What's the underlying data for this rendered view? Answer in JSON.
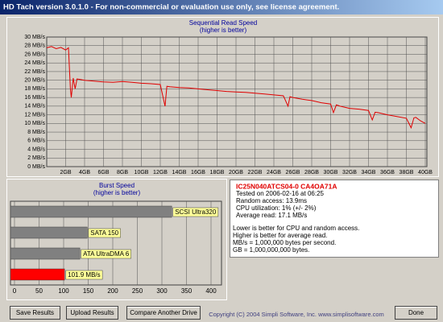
{
  "window": {
    "title": "HD Tach version 3.0.1.0  - For non-commercial or evaluation use only, see license agreement."
  },
  "chart_data": [
    {
      "type": "line",
      "title": "Sequential Read Speed",
      "subtitle": "(higher is better)",
      "x": [
        0,
        0.5,
        1,
        1.5,
        2,
        2.3,
        2.5,
        2.6,
        2.8,
        3,
        3.2,
        3.5,
        4,
        5,
        6,
        7,
        8,
        9,
        10,
        11,
        12,
        12.5,
        12.7,
        13,
        14,
        15,
        16,
        17,
        18,
        19,
        20,
        21,
        22,
        23,
        24,
        25,
        25.5,
        25.7,
        26,
        27,
        28,
        29,
        30,
        30.3,
        30.6,
        31,
        32,
        33,
        34,
        34.4,
        34.7,
        35,
        36,
        37,
        38,
        38.5,
        38.8,
        39,
        39.5,
        40
      ],
      "values": [
        27.5,
        27.8,
        27.3,
        27.6,
        27,
        27.5,
        18,
        16,
        20.5,
        18,
        20.3,
        20.2,
        20,
        19.8,
        19.6,
        19.5,
        19.7,
        19.5,
        19.3,
        19.2,
        19,
        14,
        18.6,
        18.5,
        18.3,
        18.2,
        18,
        17.8,
        17.6,
        17.4,
        17.3,
        17.2,
        17,
        16.8,
        16.6,
        16.4,
        14,
        16.2,
        16,
        15.6,
        15.3,
        14.8,
        14.5,
        12.5,
        14.3,
        14,
        13.5,
        13.3,
        13,
        10.8,
        12.6,
        12.5,
        12,
        11.6,
        11.2,
        9,
        11.3,
        11.4,
        10.6,
        10
      ],
      "color": "#e00000",
      "grid": true,
      "xlim": [
        0,
        40
      ],
      "xticks": [
        {
          "value": 2,
          "label": "2GB"
        },
        {
          "value": 4,
          "label": "4GB"
        },
        {
          "value": 6,
          "label": "6GB"
        },
        {
          "value": 8,
          "label": "8GB"
        },
        {
          "value": 10,
          "label": "10GB"
        },
        {
          "value": 12,
          "label": "12GB"
        },
        {
          "value": 14,
          "label": "14GB"
        },
        {
          "value": 16,
          "label": "16GB"
        },
        {
          "value": 18,
          "label": "18GB"
        },
        {
          "value": 20,
          "label": "20GB"
        },
        {
          "value": 22,
          "label": "22GB"
        },
        {
          "value": 24,
          "label": "24GB"
        },
        {
          "value": 26,
          "label": "26GB"
        },
        {
          "value": 28,
          "label": "28GB"
        },
        {
          "value": 30,
          "label": "30GB"
        },
        {
          "value": 32,
          "label": "32GB"
        },
        {
          "value": 34,
          "label": "34GB"
        },
        {
          "value": 36,
          "label": "36GB"
        },
        {
          "value": 38,
          "label": "38GB"
        },
        {
          "value": 40,
          "label": "40GB"
        }
      ],
      "ylim": [
        0,
        30
      ],
      "yticks": [
        {
          "value": 0,
          "label": "0 MB/s"
        },
        {
          "value": 2,
          "label": "2 MB/s"
        },
        {
          "value": 4,
          "label": "4 MB/s"
        },
        {
          "value": 6,
          "label": "6 MB/s"
        },
        {
          "value": 8,
          "label": "8 MB/s"
        },
        {
          "value": 10,
          "label": "10 MB/s"
        },
        {
          "value": 12,
          "label": "12 MB/s"
        },
        {
          "value": 14,
          "label": "14 MB/s"
        },
        {
          "value": 16,
          "label": "16 MB/s"
        },
        {
          "value": 18,
          "label": "18 MB/s"
        },
        {
          "value": 20,
          "label": "20 MB/s"
        },
        {
          "value": 22,
          "label": "22 MB/s"
        },
        {
          "value": 24,
          "label": "24 MB/s"
        },
        {
          "value": 26,
          "label": "26 MB/s"
        },
        {
          "value": 28,
          "label": "28 MB/s"
        },
        {
          "value": 30,
          "label": "30 MB/s"
        }
      ]
    },
    {
      "type": "hbar",
      "title": "Burst Speed",
      "subtitle": "(higher is better)",
      "categories": [
        "SCSI Ultra320",
        "SATA 150",
        "ATA UltraDMA 6",
        null
      ],
      "values": [
        320,
        148,
        133,
        101.9
      ],
      "value_labels": [
        null,
        null,
        null,
        "101.9 MB/s"
      ],
      "colors": [
        "#808080",
        "#808080",
        "#808080",
        "#ff0000"
      ],
      "grid": true,
      "xlim": [
        0,
        400
      ],
      "xticks": [
        0,
        50,
        100,
        150,
        200,
        250,
        300,
        350,
        400
      ]
    }
  ],
  "info": {
    "drive": "IC25N040ATCS04-0 CA4OA71A",
    "lines": [
      "Tested on 2006-02-16 at 06:25",
      "Random access: 13.9ms",
      "CPU utilization: 1% (+/- 2%)",
      "Average read: 17.1 MB/s"
    ],
    "notes": [
      "Lower is better for CPU and random access.",
      "Higher is better for average read.",
      "MB/s = 1,000,000 bytes per second.",
      "GB = 1,000,000,000 bytes."
    ]
  },
  "buttons": [
    "Save Results",
    "Upload Results",
    "Compare Another Drive",
    "Done"
  ],
  "footer": "Copyright (C) 2004 Simpli Software, Inc. www.simplisoftware.com"
}
